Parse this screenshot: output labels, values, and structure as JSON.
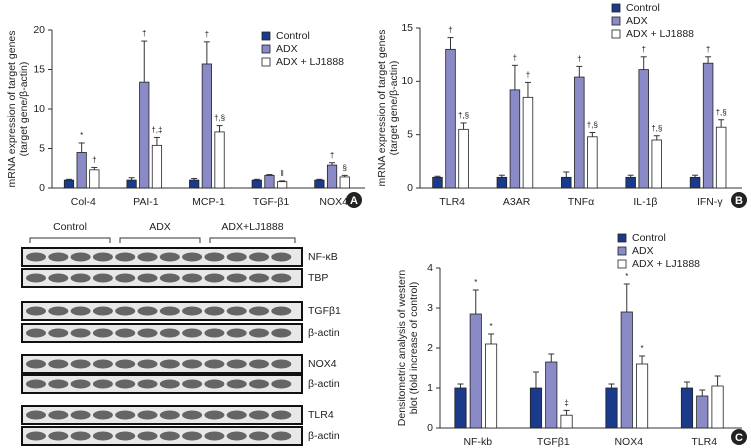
{
  "chart_data": [
    {
      "type": "bar",
      "panel": "A",
      "ylabel": [
        "mRNA expression of target genes",
        "(target gene/β-actin)"
      ],
      "categories": [
        "Col-4",
        "PAI-1",
        "MCP-1",
        "TGF-β1",
        "NOX4"
      ],
      "ylim": [
        0,
        20
      ],
      "yticks": [
        0,
        5,
        10,
        15,
        20
      ],
      "series": [
        {
          "name": "Control",
          "color": "#1b3a8a",
          "values": [
            1.0,
            1.0,
            1.0,
            1.0,
            1.0
          ],
          "errors": [
            0.1,
            0.3,
            0.2,
            0.1,
            0.1
          ],
          "annotations": [
            null,
            null,
            null,
            null,
            null
          ]
        },
        {
          "name": "ADX",
          "color": "#8a8ac6",
          "values": [
            4.5,
            13.4,
            15.7,
            1.6,
            2.9
          ],
          "errors": [
            1.2,
            5.2,
            2.8,
            0.1,
            0.3
          ],
          "annotations": [
            "*",
            "†",
            "†",
            null,
            "†"
          ]
        },
        {
          "name": "ADX + LJ1888",
          "color": "#ffffff",
          "values": [
            2.3,
            5.4,
            7.1,
            0.8,
            1.4
          ],
          "errors": [
            0.3,
            1.0,
            0.8,
            0.1,
            0.2
          ],
          "annotations": [
            "†",
            "†,‡",
            "†,§",
            "‖",
            "§"
          ]
        }
      ]
    },
    {
      "type": "bar",
      "panel": "B",
      "ylabel": [
        "mRNA expression of target genes",
        "(target gene/β-actin)"
      ],
      "categories": [
        "TLR4",
        "A3AR",
        "TNFα",
        "IL-1β",
        "IFN-γ"
      ],
      "ylim": [
        0,
        15
      ],
      "yticks": [
        0,
        5,
        10,
        15
      ],
      "series": [
        {
          "name": "Control",
          "color": "#1b3a8a",
          "values": [
            1.0,
            1.0,
            1.0,
            1.0,
            1.0
          ],
          "errors": [
            0.1,
            0.2,
            0.5,
            0.2,
            0.2
          ],
          "annotations": [
            null,
            null,
            null,
            null,
            null
          ]
        },
        {
          "name": "ADX",
          "color": "#8a8ac6",
          "values": [
            13.0,
            9.2,
            10.4,
            11.1,
            11.7
          ],
          "errors": [
            1.1,
            2.3,
            1.0,
            1.2,
            0.6
          ],
          "annotations": [
            "†",
            "†",
            "†",
            "†",
            "†"
          ]
        },
        {
          "name": "ADX + LJ1888",
          "color": "#ffffff",
          "values": [
            5.5,
            8.5,
            4.8,
            4.5,
            5.7
          ],
          "errors": [
            0.6,
            1.4,
            0.4,
            0.4,
            0.7
          ],
          "annotations": [
            "†,§",
            "†",
            "†,§",
            "†,§",
            "†,§"
          ]
        }
      ]
    },
    {
      "type": "bar",
      "panel": "C",
      "ylabel": [
        "Densitometric analysis of western",
        "blot (fold increase of control)"
      ],
      "categories": [
        "NF-kb",
        "TGFβ1",
        "NOX4",
        "TLR4"
      ],
      "ylim": [
        0,
        4
      ],
      "yticks": [
        0,
        1,
        2,
        3,
        4
      ],
      "series": [
        {
          "name": "Control",
          "color": "#1b3a8a",
          "values": [
            1.0,
            1.0,
            1.0,
            1.0
          ],
          "errors": [
            0.1,
            0.4,
            0.1,
            0.15
          ],
          "annotations": [
            null,
            null,
            null,
            null
          ]
        },
        {
          "name": "ADX",
          "color": "#8a8ac6",
          "values": [
            2.85,
            1.65,
            2.9,
            0.8
          ],
          "errors": [
            0.6,
            0.2,
            0.7,
            0.15
          ],
          "annotations": [
            "*",
            null,
            "*",
            null
          ]
        },
        {
          "name": "ADX + LJ1888",
          "color": "#ffffff",
          "values": [
            2.1,
            0.32,
            1.6,
            1.05
          ],
          "errors": [
            0.25,
            0.12,
            0.2,
            0.25
          ],
          "annotations": [
            "*",
            "‡",
            "*",
            null
          ]
        }
      ]
    }
  ],
  "blot": {
    "groups": [
      "Control",
      "ADX",
      "ADX+LJ1888"
    ],
    "rows": [
      "NF-κB",
      "TBP",
      "TGFβ1",
      "β-actin",
      "NOX4",
      "β-actin",
      "TLR4",
      "β-actin"
    ]
  }
}
